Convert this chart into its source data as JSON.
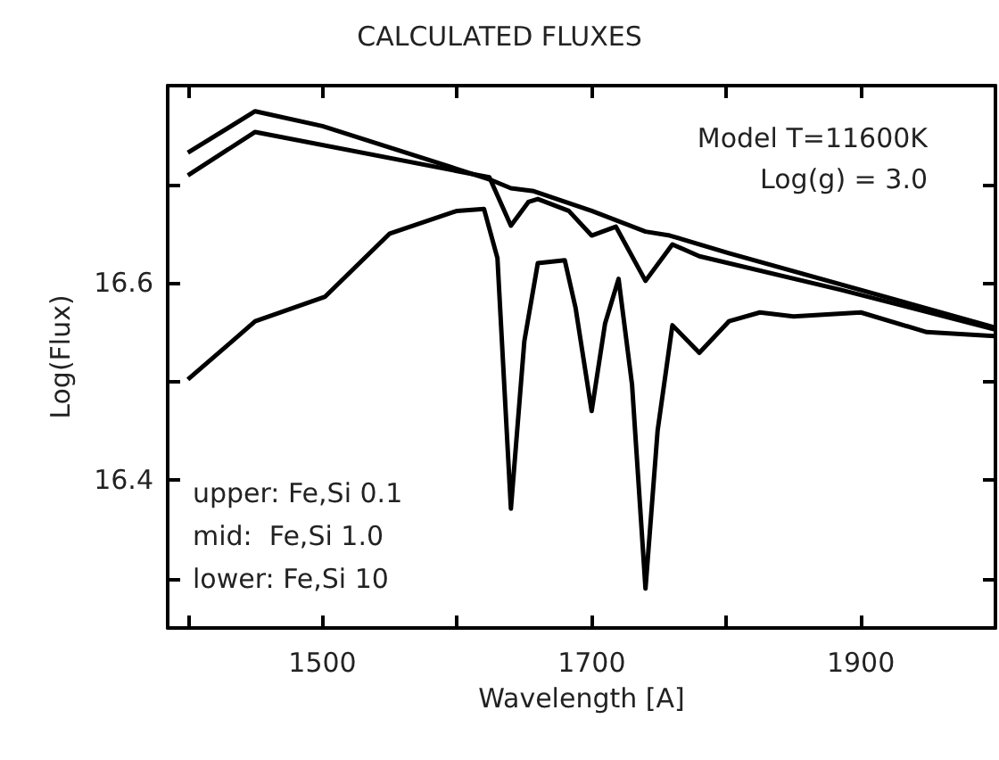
{
  "chart_data": {
    "type": "line",
    "title": "CALCULATED FLUXES",
    "xlabel": "Wavelength [A]",
    "ylabel": "Log(Flux)",
    "annotations": [
      "Model T=11600K",
      "Log(g) = 3.0",
      "upper: Fe,Si 0.1",
      "mid:  Fe,Si 1.0",
      "lower: Fe,Si 10"
    ],
    "series": [
      {
        "color": "#000000",
        "x": [
          1400,
          1450,
          1500,
          1624,
          1640,
          1657,
          1700,
          1740,
          1758,
          1802,
          1999
        ],
        "values": [
          16.732,
          16.774,
          16.759,
          16.705,
          16.696,
          16.693,
          16.673,
          16.652,
          16.648,
          16.63,
          16.555
        ]
      },
      {
        "color": "#000000",
        "x": [
          1400,
          1450,
          1624,
          1640,
          1653,
          1660,
          1683,
          1700,
          1718,
          1740,
          1760,
          1780,
          1885,
          1999
        ],
        "values": [
          16.709,
          16.753,
          16.707,
          16.658,
          16.682,
          16.685,
          16.673,
          16.648,
          16.657,
          16.602,
          16.639,
          16.627,
          16.593,
          16.553
        ]
      },
      {
        "color": "#000000",
        "x": [
          1400,
          1450,
          1502,
          1550,
          1600,
          1620,
          1630,
          1640,
          1650,
          1660,
          1680,
          1688,
          1700,
          1710,
          1720,
          1730,
          1740,
          1749,
          1760,
          1780,
          1802,
          1825,
          1850,
          1900,
          1949,
          1999
        ],
        "values": [
          16.502,
          16.561,
          16.586,
          16.65,
          16.673,
          16.675,
          16.625,
          16.371,
          16.541,
          16.62,
          16.623,
          16.575,
          16.47,
          16.559,
          16.604,
          16.497,
          16.29,
          16.45,
          16.557,
          16.529,
          16.561,
          16.57,
          16.566,
          16.57,
          16.55,
          16.546
        ]
      }
    ],
    "xlim": [
      1385,
      2000
    ],
    "xticks": [
      {
        "value": 1400,
        "label": null
      },
      1500,
      {
        "value": 1600,
        "label": null
      },
      1700,
      {
        "value": 1800,
        "label": null
      },
      1900
    ],
    "ylim": [
      16.25,
      16.8
    ],
    "yticks": [
      {
        "value": 16.3,
        "label": null
      },
      16.4,
      {
        "value": 16.5,
        "label": null
      },
      16.6,
      {
        "value": 16.7,
        "label": null
      }
    ],
    "grid": false,
    "marker": "none",
    "line_style": "solid"
  }
}
